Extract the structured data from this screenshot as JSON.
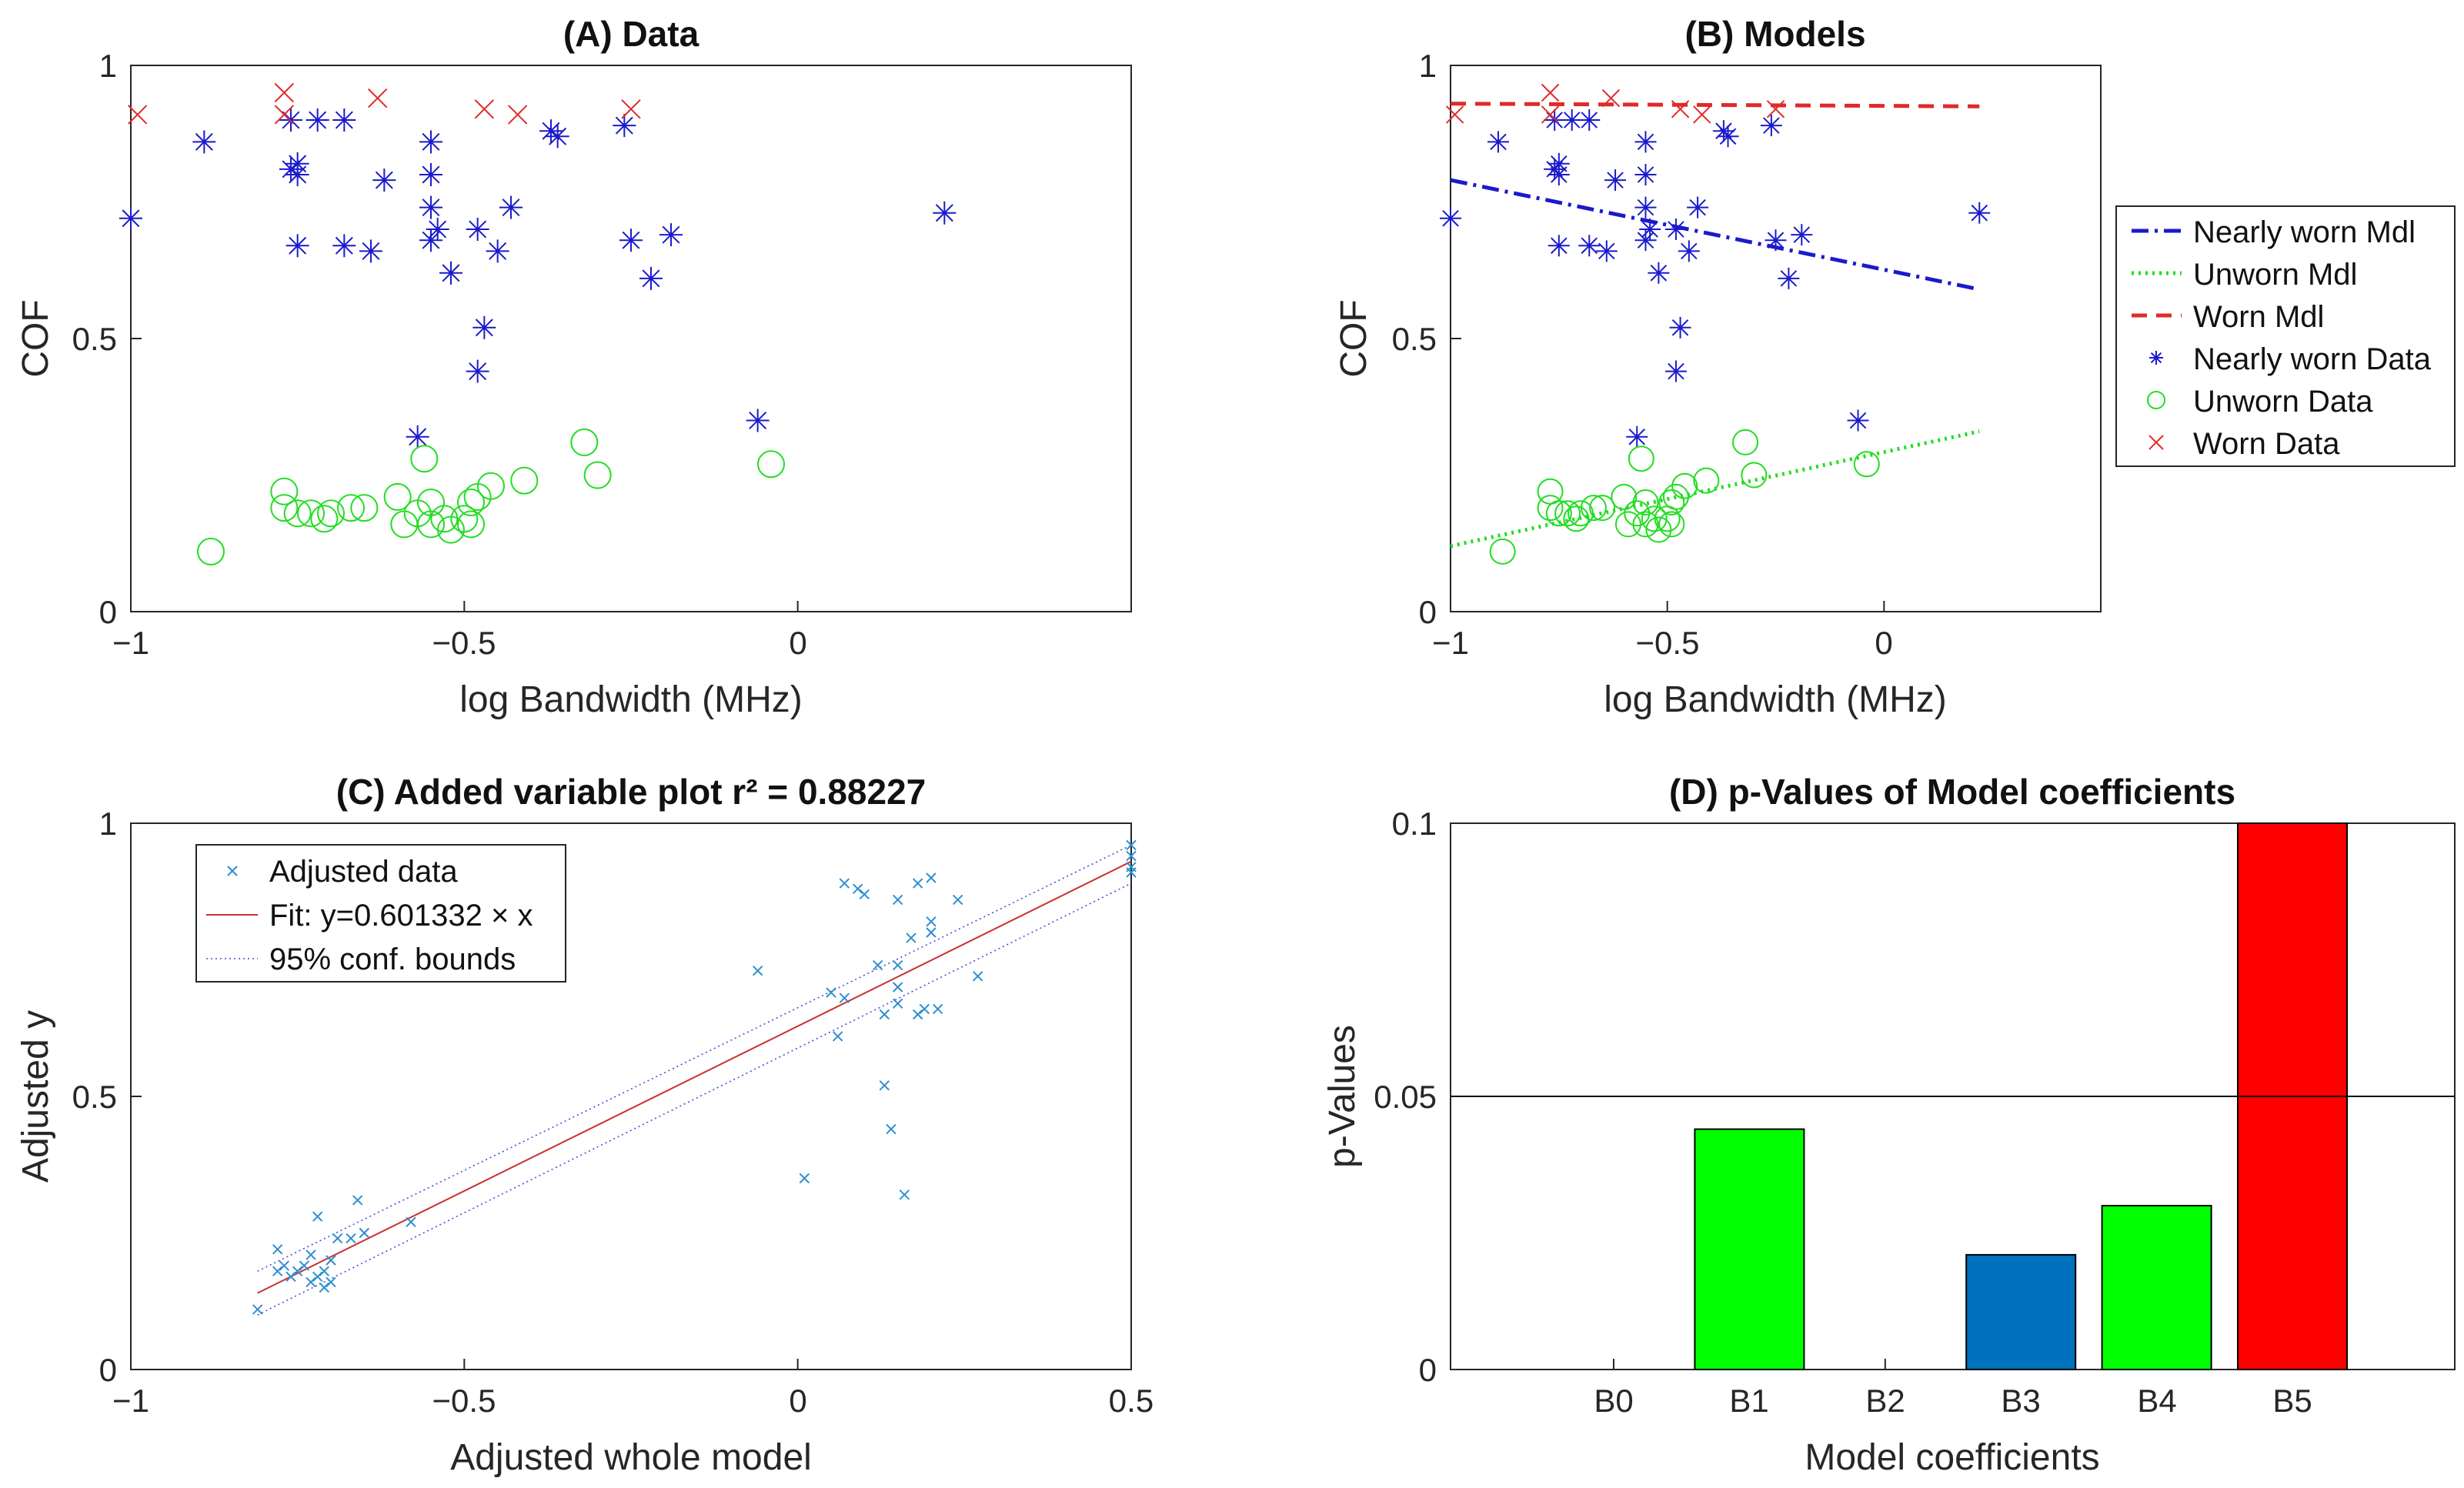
{
  "colors": {
    "nearly_worn": "#1a1acc",
    "unworn": "#22dd22",
    "worn": "#e02a2a",
    "adjusted": "#2f8fd0",
    "fit": "#c83232",
    "bound": "#4a4adc",
    "bar_blue": "#0072bd",
    "bar_green": "#00ff00",
    "bar_red": "#ff0000"
  },
  "chart_data": [
    {
      "id": "A",
      "type": "scatter",
      "title": "(A) Data",
      "xlabel": "log Bandwidth (MHz)",
      "ylabel": "COF",
      "xlim": [
        -1,
        0.5
      ],
      "ylim": [
        0,
        1
      ],
      "xticks": [
        -1,
        -0.5,
        0
      ],
      "xtick_labels": [
        "−1",
        "−0.5",
        "0"
      ],
      "yticks": [
        0,
        0.5,
        1
      ],
      "ytick_labels": [
        "0",
        "0.5",
        "1"
      ],
      "series": [
        {
          "name": "Nearly worn Data",
          "marker": "asterisk",
          "color_key": "nearly_worn",
          "points": [
            [
              -1.0,
              0.72
            ],
            [
              -0.89,
              0.86
            ],
            [
              -0.76,
              0.9
            ],
            [
              -0.76,
              0.81
            ],
            [
              -0.75,
              0.8
            ],
            [
              -0.75,
              0.82
            ],
            [
              -0.75,
              0.67
            ],
            [
              -0.72,
              0.9
            ],
            [
              -0.68,
              0.9
            ],
            [
              -0.68,
              0.67
            ],
            [
              -0.64,
              0.66
            ],
            [
              -0.62,
              0.79
            ],
            [
              -0.55,
              0.86
            ],
            [
              -0.55,
              0.8
            ],
            [
              -0.55,
              0.74
            ],
            [
              -0.55,
              0.68
            ],
            [
              -0.54,
              0.7
            ],
            [
              -0.52,
              0.62
            ],
            [
              -0.48,
              0.7
            ],
            [
              -0.48,
              0.44
            ],
            [
              -0.47,
              0.52
            ],
            [
              -0.45,
              0.66
            ],
            [
              -0.43,
              0.74
            ],
            [
              -0.37,
              0.88
            ],
            [
              -0.36,
              0.87
            ],
            [
              -0.26,
              0.89
            ],
            [
              -0.25,
              0.68
            ],
            [
              -0.22,
              0.61
            ],
            [
              -0.19,
              0.69
            ],
            [
              -0.57,
              0.32
            ],
            [
              -0.06,
              0.35
            ],
            [
              0.22,
              0.73
            ]
          ]
        },
        {
          "name": "Unworn Data",
          "marker": "circle",
          "color_key": "unworn",
          "points": [
            [
              -0.88,
              0.11
            ],
            [
              -0.77,
              0.22
            ],
            [
              -0.77,
              0.19
            ],
            [
              -0.75,
              0.18
            ],
            [
              -0.73,
              0.18
            ],
            [
              -0.71,
              0.17
            ],
            [
              -0.7,
              0.18
            ],
            [
              -0.67,
              0.19
            ],
            [
              -0.65,
              0.19
            ],
            [
              -0.6,
              0.21
            ],
            [
              -0.59,
              0.16
            ],
            [
              -0.57,
              0.18
            ],
            [
              -0.56,
              0.28
            ],
            [
              -0.55,
              0.2
            ],
            [
              -0.55,
              0.16
            ],
            [
              -0.53,
              0.17
            ],
            [
              -0.52,
              0.15
            ],
            [
              -0.5,
              0.17
            ],
            [
              -0.49,
              0.16
            ],
            [
              -0.49,
              0.2
            ],
            [
              -0.48,
              0.21
            ],
            [
              -0.46,
              0.23
            ],
            [
              -0.41,
              0.24
            ],
            [
              -0.32,
              0.31
            ],
            [
              -0.3,
              0.25
            ],
            [
              -0.04,
              0.27
            ]
          ]
        },
        {
          "name": "Worn Data",
          "marker": "x",
          "color_key": "worn",
          "points": [
            [
              -0.99,
              0.91
            ],
            [
              -0.77,
              0.95
            ],
            [
              -0.77,
              0.91
            ],
            [
              -0.63,
              0.94
            ],
            [
              -0.47,
              0.92
            ],
            [
              -0.42,
              0.91
            ],
            [
              -0.25,
              0.92
            ]
          ]
        }
      ]
    },
    {
      "id": "B",
      "type": "scatter",
      "title": "(B) Models",
      "xlabel": "log Bandwidth (MHz)",
      "ylabel": "COF",
      "xlim": [
        -1,
        0.5
      ],
      "ylim": [
        0,
        1
      ],
      "xticks": [
        -1,
        -0.5,
        0
      ],
      "xtick_labels": [
        "−1",
        "−0.5",
        "0"
      ],
      "yticks": [
        0,
        0.5,
        1
      ],
      "ytick_labels": [
        "0",
        "0.5",
        "1"
      ],
      "lines": [
        {
          "name": "Nearly worn Mdl",
          "style": "dashdot",
          "color_key": "nearly_worn",
          "x": [
            -1.0,
            0.22
          ],
          "y": [
            0.79,
            0.59
          ]
        },
        {
          "name": "Unworn Mdl",
          "style": "dotted",
          "color_key": "unworn",
          "x": [
            -1.0,
            0.22
          ],
          "y": [
            0.12,
            0.33
          ]
        },
        {
          "name": "Worn Mdl",
          "style": "dashed",
          "color_key": "worn",
          "x": [
            -1.0,
            0.22
          ],
          "y": [
            0.93,
            0.925
          ]
        }
      ],
      "series_ref": "A",
      "legend": {
        "position": "outside-right",
        "entries": [
          {
            "label": "Nearly worn Mdl",
            "kind": "line",
            "style": "dashdot",
            "color_key": "nearly_worn"
          },
          {
            "label": "Unworn Mdl",
            "kind": "line",
            "style": "dotted",
            "color_key": "unworn"
          },
          {
            "label": "Worn Mdl",
            "kind": "line",
            "style": "dashed",
            "color_key": "worn"
          },
          {
            "label": "Nearly worn Data",
            "kind": "marker",
            "marker": "asterisk",
            "color_key": "nearly_worn"
          },
          {
            "label": "Unworn Data",
            "kind": "marker",
            "marker": "circle",
            "color_key": "unworn"
          },
          {
            "label": "Worn Data",
            "kind": "marker",
            "marker": "x",
            "color_key": "worn"
          }
        ]
      }
    },
    {
      "id": "C",
      "type": "scatter",
      "title": "(C) Added variable plot r² = 0.88227",
      "xlabel": "Adjusted whole model",
      "ylabel": "Adjusted y",
      "xlim": [
        -1,
        0.5
      ],
      "ylim": [
        0,
        1
      ],
      "xticks": [
        -1,
        -0.5,
        0,
        0.5
      ],
      "xtick_labels": [
        "−1",
        "−0.5",
        "0",
        "0.5"
      ],
      "yticks": [
        0,
        0.5,
        1
      ],
      "ytick_labels": [
        "0",
        "0.5",
        "1"
      ],
      "fit": {
        "label": "Fit: y=0.601332 × x",
        "x": [
          -0.81,
          0.5
        ],
        "y": [
          0.14,
          0.93
        ]
      },
      "bounds": {
        "label": "95% conf. bounds",
        "upper": [
          [
            -0.81,
            0.18
          ],
          [
            0.5,
            0.96
          ]
        ],
        "lower": [
          [
            -0.81,
            0.1
          ],
          [
            0.5,
            0.89
          ]
        ]
      },
      "series": [
        {
          "name": "Adjusted data",
          "marker": "x",
          "color_key": "adjusted",
          "points": [
            [
              -0.81,
              0.11
            ],
            [
              -0.78,
              0.22
            ],
            [
              -0.78,
              0.18
            ],
            [
              -0.77,
              0.19
            ],
            [
              -0.76,
              0.17
            ],
            [
              -0.75,
              0.18
            ],
            [
              -0.74,
              0.19
            ],
            [
              -0.73,
              0.16
            ],
            [
              -0.73,
              0.21
            ],
            [
              -0.72,
              0.17
            ],
            [
              -0.72,
              0.28
            ],
            [
              -0.71,
              0.18
            ],
            [
              -0.71,
              0.15
            ],
            [
              -0.7,
              0.16
            ],
            [
              -0.7,
              0.2
            ],
            [
              -0.69,
              0.24
            ],
            [
              -0.67,
              0.24
            ],
            [
              -0.66,
              0.31
            ],
            [
              -0.65,
              0.25
            ],
            [
              -0.58,
              0.27
            ],
            [
              -0.06,
              0.73
            ],
            [
              0.01,
              0.35
            ],
            [
              0.05,
              0.69
            ],
            [
              0.06,
              0.61
            ],
            [
              0.07,
              0.68
            ],
            [
              0.07,
              0.89
            ],
            [
              0.09,
              0.88
            ],
            [
              0.1,
              0.87
            ],
            [
              0.12,
              0.74
            ],
            [
              0.13,
              0.65
            ],
            [
              0.13,
              0.52
            ],
            [
              0.14,
              0.44
            ],
            [
              0.15,
              0.86
            ],
            [
              0.15,
              0.74
            ],
            [
              0.15,
              0.67
            ],
            [
              0.15,
              0.7
            ],
            [
              0.16,
              0.32
            ],
            [
              0.17,
              0.79
            ],
            [
              0.18,
              0.65
            ],
            [
              0.18,
              0.89
            ],
            [
              0.19,
              0.66
            ],
            [
              0.2,
              0.9
            ],
            [
              0.2,
              0.82
            ],
            [
              0.2,
              0.8
            ],
            [
              0.21,
              0.66
            ],
            [
              0.24,
              0.86
            ],
            [
              0.27,
              0.72
            ],
            [
              0.5,
              0.96
            ],
            [
              0.5,
              0.94
            ],
            [
              0.5,
              0.92
            ],
            [
              0.5,
              0.91
            ]
          ]
        }
      ],
      "legend": {
        "position": "top-left",
        "entries": [
          {
            "label": "Adjusted data",
            "kind": "marker",
            "marker": "x",
            "color_key": "adjusted"
          },
          {
            "label": "Fit: y=0.601332 × x",
            "kind": "line",
            "style": "solid",
            "color_key": "fit"
          },
          {
            "label": "95% conf. bounds",
            "kind": "line",
            "style": "dotted",
            "color_key": "bound"
          }
        ]
      }
    },
    {
      "id": "D",
      "type": "bar",
      "title": "(D) p-Values of Model coefficients",
      "xlabel": "Model coefficients",
      "ylabel": "p-Values",
      "categories": [
        "B0",
        "B1",
        "B2",
        "B3",
        "B4",
        "B5"
      ],
      "values": [
        0,
        0.044,
        0,
        0.021,
        0.03,
        0.1
      ],
      "bar_color_keys": [
        "bar_blue",
        "bar_green",
        "bar_blue",
        "bar_blue",
        "bar_green",
        "bar_red"
      ],
      "ylim": [
        0,
        0.1
      ],
      "yticks": [
        0,
        0.05,
        0.1
      ],
      "ytick_labels": [
        "0",
        "0.05",
        "0.1"
      ],
      "reference_line": 0.05
    }
  ]
}
